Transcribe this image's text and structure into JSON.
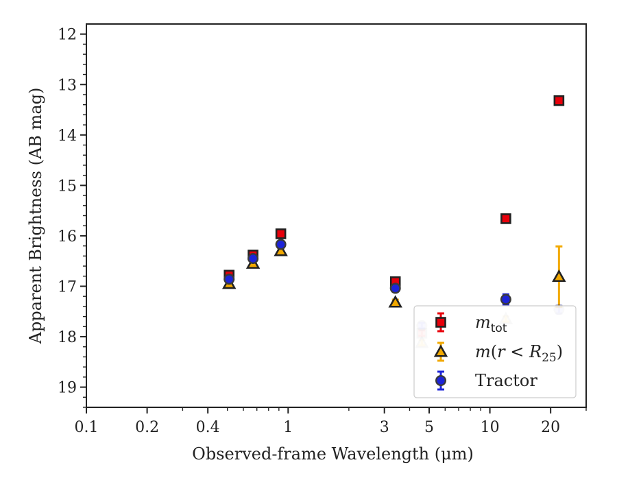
{
  "chart_data": {
    "type": "scatter",
    "title": "",
    "xlabel": "Observed-frame Wavelength (μm)",
    "ylabel": "Apparent Brightness (AB mag)",
    "xscale": "log",
    "xlim": [
      0.1,
      30
    ],
    "ylim": [
      19.4,
      11.8
    ],
    "y_inverted": true,
    "x_ticks": [
      {
        "value": 0.1,
        "label": "0.1"
      },
      {
        "value": 0.2,
        "label": "0.2"
      },
      {
        "value": 0.4,
        "label": "0.4"
      },
      {
        "value": 1,
        "label": "1"
      },
      {
        "value": 3,
        "label": "3"
      },
      {
        "value": 5,
        "label": "5"
      },
      {
        "value": 10,
        "label": "10"
      },
      {
        "value": 20,
        "label": "20"
      }
    ],
    "y_ticks": [
      {
        "value": 12,
        "label": "12"
      },
      {
        "value": 13,
        "label": "13"
      },
      {
        "value": 14,
        "label": "14"
      },
      {
        "value": 15,
        "label": "15"
      },
      {
        "value": 16,
        "label": "16"
      },
      {
        "value": 17,
        "label": "17"
      },
      {
        "value": 18,
        "label": "18"
      },
      {
        "value": 19,
        "label": "19"
      }
    ],
    "grid": false,
    "legend_position": "lower-right",
    "series": [
      {
        "name": "m_tot",
        "marker": "square",
        "color": "#e8000b",
        "edge": "#222222",
        "errcolor": "#e8000b",
        "points": [
          {
            "x": 0.51,
            "y": 16.78,
            "err": 0.05,
            "faded": false
          },
          {
            "x": 0.67,
            "y": 16.38,
            "err": 0.05,
            "faded": false
          },
          {
            "x": 0.92,
            "y": 15.96,
            "err": 0.05,
            "faded": false
          },
          {
            "x": 3.4,
            "y": 16.91,
            "err": 0.05,
            "faded": false
          },
          {
            "x": 4.6,
            "y": 17.93,
            "err": 0.05,
            "faded": true
          },
          {
            "x": 12.0,
            "y": 15.66,
            "err": 0.05,
            "faded": false
          },
          {
            "x": 22.0,
            "y": 13.32,
            "err": 0.05,
            "faded": false
          }
        ]
      },
      {
        "name": "m(r < R25)",
        "marker": "triangle",
        "color": "#f2a900",
        "edge": "#222222",
        "errcolor": "#f2a900",
        "points": [
          {
            "x": 0.51,
            "y": 16.95,
            "err": 0.05,
            "faded": false
          },
          {
            "x": 0.67,
            "y": 16.55,
            "err": 0.05,
            "faded": false
          },
          {
            "x": 0.92,
            "y": 16.3,
            "err": 0.05,
            "faded": false
          },
          {
            "x": 3.4,
            "y": 17.32,
            "err": 0.05,
            "faded": false
          },
          {
            "x": 4.6,
            "y": 18.12,
            "err": 0.05,
            "faded": true
          },
          {
            "x": 12.0,
            "y": 17.65,
            "err": 0.05,
            "faded": true
          },
          {
            "x": 22.0,
            "y": 16.81,
            "err": 0.6,
            "faded": false
          }
        ]
      },
      {
        "name": "Tractor",
        "marker": "circle",
        "color": "#1d24d8",
        "edge": "#3a3a3a",
        "errcolor": "#1d24d8",
        "points": [
          {
            "x": 0.51,
            "y": 16.86,
            "err": 0.05,
            "faded": false
          },
          {
            "x": 0.67,
            "y": 16.45,
            "err": 0.05,
            "faded": false
          },
          {
            "x": 0.92,
            "y": 16.17,
            "err": 0.05,
            "faded": false
          },
          {
            "x": 3.4,
            "y": 17.04,
            "err": 0.05,
            "faded": false
          },
          {
            "x": 4.6,
            "y": 17.78,
            "err": 0.05,
            "faded": true
          },
          {
            "x": 12.0,
            "y": 17.26,
            "err": 0.1,
            "faded": false
          },
          {
            "x": 22.0,
            "y": 17.46,
            "err": 0.08,
            "faded": true
          }
        ]
      }
    ]
  }
}
